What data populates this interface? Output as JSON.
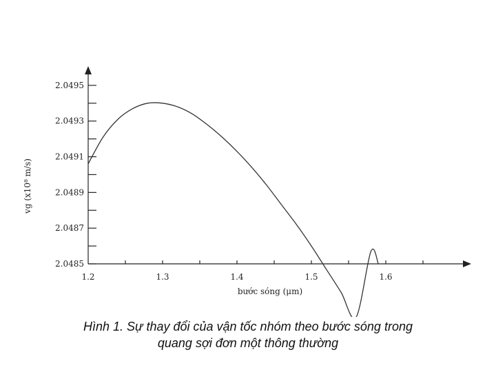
{
  "chart_data": {
    "type": "line",
    "xlabel": "bước sóng (μm)",
    "ylabel": "vg (x10⁸ m/s)",
    "xlim": [
      1.2,
      1.7
    ],
    "ylim": [
      2.0485,
      2.0496
    ],
    "x_ticks": [
      1.2,
      1.3,
      1.4,
      1.5,
      1.6
    ],
    "x_tick_labels": [
      "1.2",
      "1.3",
      "1.4",
      "1.5",
      "1.6"
    ],
    "y_ticks": [
      2.0485,
      2.0487,
      2.0489,
      2.0491,
      2.0493,
      2.0495
    ],
    "y_tick_labels": [
      "2.0485",
      "2.0487",
      "2.0489",
      "2.0491",
      "2.0493",
      "2.0495"
    ],
    "grid": false,
    "series": [
      {
        "x": [
          1.2,
          1.22,
          1.24,
          1.26,
          1.28,
          1.3,
          1.32,
          1.34,
          1.36,
          1.38,
          1.4,
          1.42,
          1.44,
          1.46,
          1.48,
          1.5,
          1.52,
          1.54,
          1.56,
          1.58,
          1.59
        ],
        "y": [
          2.04906,
          2.04921,
          2.04931,
          2.04937,
          2.0494,
          2.0494,
          2.04938,
          2.04934,
          2.04928,
          2.04921,
          2.04913,
          2.04904,
          2.04894,
          2.04883,
          2.04872,
          2.0486,
          2.04847,
          2.04834,
          2.0482,
          2.04857,
          2.0485
        ]
      }
    ]
  },
  "caption": {
    "line1": "Hình 1. Sự thay đổi của vận tốc nhóm theo bước sóng trong",
    "line2": "quang sợi đơn một thông thường"
  }
}
